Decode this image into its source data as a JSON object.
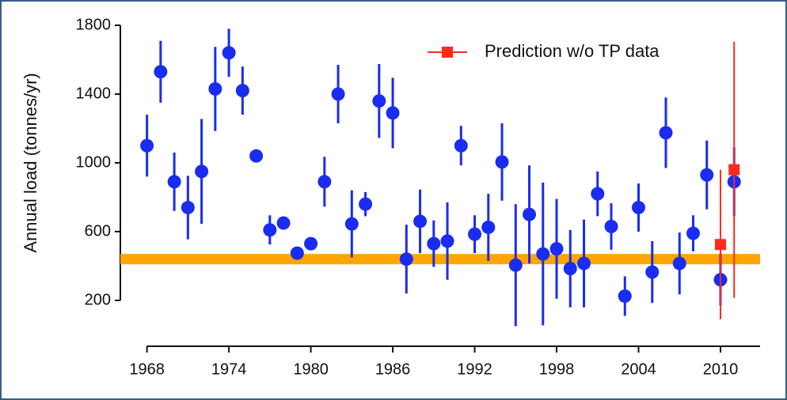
{
  "chart_data": {
    "type": "scatter",
    "y_label": "Annual load (tonnes/yr)",
    "xlim": [
      1967.5,
      2012.9
    ],
    "ylim": [
      200,
      1800
    ],
    "xticks": [
      1968,
      1974,
      1980,
      1986,
      1992,
      1998,
      2004,
      2010
    ],
    "yticks": [
      200,
      600,
      1000,
      1400,
      1800
    ],
    "legend": "upper right",
    "hline": {
      "value": 440,
      "color": "#ffa500"
    },
    "series": [
      {
        "color": "#1a2cf0",
        "x": [
          1968,
          1969,
          1970,
          1971,
          1972,
          1973,
          1974,
          1975,
          1976,
          1977,
          1978,
          1979,
          1980,
          1981,
          1982,
          1983,
          1984,
          1985,
          1986,
          1987,
          1988,
          1989,
          1990,
          1991,
          1992,
          1993,
          1994,
          1995,
          1996,
          1997,
          1998,
          1999,
          2000,
          2001,
          2002,
          2003,
          2004,
          2005,
          2006,
          2007,
          2008,
          2009,
          2010,
          2011
        ],
        "values": [
          1100,
          1530,
          890,
          740,
          950,
          1430,
          1640,
          1420,
          1040,
          610,
          650,
          475,
          530,
          890,
          1400,
          645,
          760,
          1360,
          1290,
          440,
          660,
          530,
          545,
          1100,
          585,
          625,
          1005,
          405,
          700,
          470,
          500,
          385,
          415,
          820,
          630,
          225,
          740,
          365,
          1175,
          415,
          590,
          930,
          320,
          890
        ],
        "errors": [
          180,
          180,
          170,
          185,
          305,
          245,
          140,
          140,
          20,
          85,
          20,
          10,
          10,
          145,
          170,
          195,
          70,
          215,
          205,
          200,
          185,
          135,
          225,
          115,
          110,
          195,
          225,
          355,
          285,
          415,
          290,
          225,
          255,
          130,
          135,
          115,
          140,
          180,
          205,
          180,
          105,
          200,
          150,
          200
        ]
      },
      {
        "name": "Prediction w/o TP data",
        "color": "#ff2a1a",
        "x": [
          2010,
          2011
        ],
        "values": [
          525,
          960
        ],
        "errors": [
          435,
          745
        ]
      }
    ]
  }
}
